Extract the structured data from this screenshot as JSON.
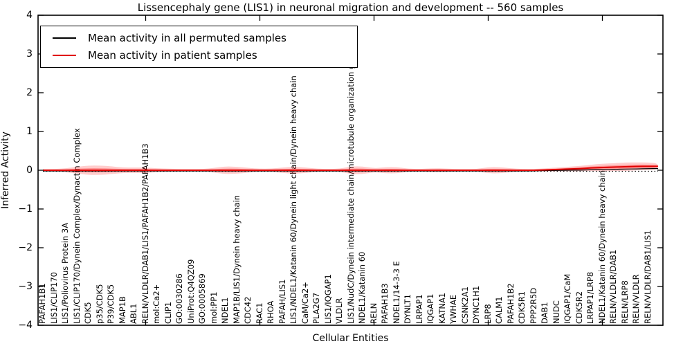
{
  "title": "Lissencephaly gene (LIS1) in neuronal migration and development -- 560 samples",
  "legend": {
    "items": [
      {
        "label": "Mean activity in all permuted samples",
        "color": "#000000"
      },
      {
        "label": "Mean activity in patient samples",
        "color": "#e00000"
      }
    ]
  },
  "colors": {
    "frame": "#000000",
    "band_fill": "#ff0000",
    "patient_line": "#e00000",
    "permuted_line": "#000000",
    "zero_line": "#000000"
  },
  "yaxis": {
    "label": "Inferred Activity",
    "ticks": [
      {
        "value": 4,
        "label": "4"
      },
      {
        "value": 3,
        "label": "3"
      },
      {
        "value": 2,
        "label": "2"
      },
      {
        "value": 1,
        "label": "1"
      },
      {
        "value": 0,
        "label": "0"
      },
      {
        "value": -1,
        "label": "−1"
      },
      {
        "value": -2,
        "label": "−2"
      },
      {
        "value": -3,
        "label": "−3"
      },
      {
        "value": -4,
        "label": "−4"
      }
    ]
  },
  "xaxis": {
    "label": "Cellular Entities"
  },
  "chart_data": {
    "type": "line",
    "title": "Lissencephaly gene (LIS1) in neuronal migration and development -- 560 samples",
    "xlabel": "Cellular Entities",
    "ylabel": "Inferred Activity",
    "ylim": [
      -4,
      4
    ],
    "grid": false,
    "legend_position": "upper left",
    "categories": [
      "PAFAH1B1",
      "LIS1/CLIP170",
      "LIS1/Poliovirus Protein 3A",
      "LIS1/CLIP170/Dynein Complex/Dynactin Complex",
      "CDK5",
      "p35/CDK5",
      "P39/CDK5",
      "MAP1B",
      "ABL1",
      "RELN/VLDLR/DAB1/LIS1/PAFAH1B2/PAFAH1B3",
      "mol:Ca2+",
      "CLIP1",
      "GO:0030286",
      "UniProt:Q4QZ09",
      "GO:0005869",
      "mol:PP1",
      "NDEL1",
      "MAP1B/LIS1/Dynein heavy chain",
      "CDC42",
      "RAC1",
      "RHOA",
      "PAFAH/LIS1",
      "LIS1/NDEL1/Katanin 60/Dynein light chain/Dynein heavy chain",
      "CaM/Ca2+",
      "PLA2G7",
      "LIS1/IQGAP1",
      "VLDLR",
      "LIS1/NudC/Dynein intermediate chain/microtubule organization genes",
      "NDEL1/Katanin 60",
      "RELN",
      "PAFAH1B3",
      "NDEL1/14-3-3 E",
      "DYNLT1",
      "LRPAP1",
      "IQGAP1",
      "KATNA1",
      "YWHAE",
      "CSNK2A1",
      "DYNC1H1",
      "LRP8",
      "CALM1",
      "PAFAH1B2",
      "CDK5R1",
      "PPP2R5D",
      "DAB1",
      "NUDC",
      "IQGAP1/CaM",
      "CDK5R2",
      "LRPAP1/LRP8",
      "NDEL1/Katanin 60/Dynein heavy chain",
      "RELN/VLDLR/DAB1",
      "RELN/LRP8",
      "RELN/VLDLR",
      "RELN/VLDLR/DAB1/LIS1"
    ],
    "series": [
      {
        "name": "Mean activity in all permuted samples",
        "values": [
          0,
          0,
          0,
          0,
          0,
          0,
          0,
          0,
          0,
          0,
          0,
          0,
          0,
          0,
          0,
          0,
          0,
          0,
          0,
          0,
          0,
          0,
          0,
          0,
          0,
          0,
          0,
          0,
          0,
          0,
          0,
          0,
          0,
          0,
          0,
          0,
          0,
          0,
          0,
          0,
          0,
          0,
          0,
          0,
          0.01,
          0.01,
          0.02,
          0.02,
          0.03,
          0.04,
          0.04,
          0.05,
          0.05,
          0.06
        ]
      },
      {
        "name": "Mean activity in patient samples",
        "values": [
          0,
          0,
          0,
          0,
          0,
          0,
          0,
          0,
          0,
          0,
          0,
          0,
          0,
          0,
          0,
          0,
          0,
          0,
          0,
          0,
          0,
          0,
          0,
          0,
          0,
          0,
          0,
          0,
          0,
          0,
          0,
          0,
          0,
          0,
          0,
          0,
          0,
          0,
          0,
          0,
          0,
          0,
          0,
          0,
          0.01,
          0.02,
          0.03,
          0.04,
          0.06,
          0.07,
          0.08,
          0.09,
          0.1,
          0.1
        ]
      }
    ],
    "band_halfwidth": [
      0.03,
      0.03,
      0.05,
      0.09,
      0.12,
      0.12,
      0.1,
      0.07,
      0.07,
      0.07,
      0.05,
      0.04,
      0.03,
      0.03,
      0.03,
      0.06,
      0.1,
      0.09,
      0.06,
      0.04,
      0.04,
      0.07,
      0.09,
      0.07,
      0.04,
      0.03,
      0.04,
      0.1,
      0.1,
      0.05,
      0.08,
      0.08,
      0.04,
      0.03,
      0.05,
      0.05,
      0.03,
      0.03,
      0.03,
      0.08,
      0.08,
      0.05,
      0.03,
      0.03,
      0.04,
      0.05,
      0.06,
      0.07,
      0.08,
      0.1,
      0.1,
      0.11,
      0.1,
      0.1
    ],
    "zero_reference_line": 0
  }
}
